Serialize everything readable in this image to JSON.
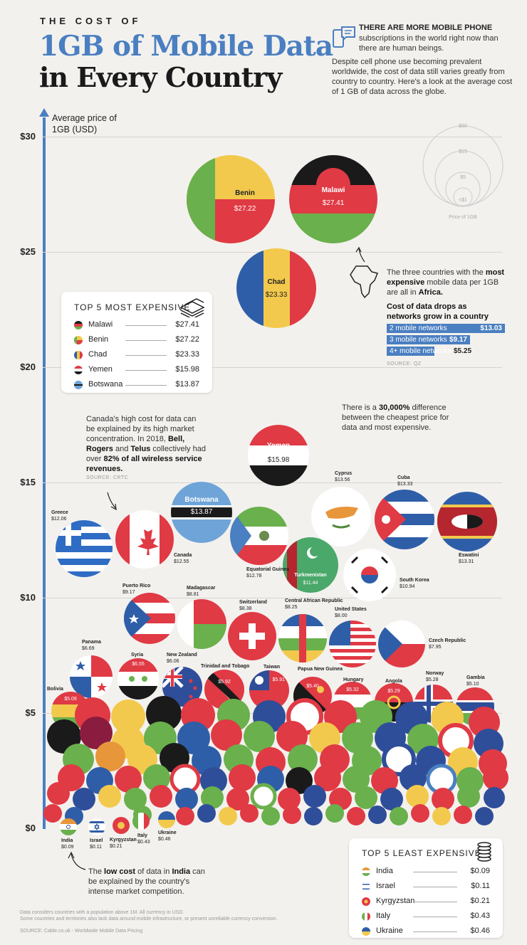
{
  "title": {
    "line1": "THE COST OF",
    "line2": "1GB of Mobile Data",
    "line3": "in Every Country"
  },
  "intro": {
    "headline": "THERE ARE MORE MOBILE PHONE",
    "sub": "subscriptions in the world right now than there are human beings.",
    "paragraph": "Despite cell phone use becoming prevalent worldwide, the cost of data still varies greatly from country to country. Here's a look at the average cost of 1 GB of data across the globe."
  },
  "legend_scale": {
    "labels": [
      "$30",
      "$15",
      "$5",
      "<$1"
    ],
    "caption": "Price of 1GB"
  },
  "chart_data": {
    "type": "scatter",
    "title": "The Cost of 1GB of Mobile Data in Every Country",
    "ylabel": "Average price of 1GB (USD)",
    "yticks": [
      "$0",
      "$5",
      "$10",
      "$15",
      "$20",
      "$25",
      "$30"
    ],
    "ylim": [
      0,
      30
    ],
    "points": [
      {
        "country": "Malawi",
        "value": 27.41,
        "label": "$27.41"
      },
      {
        "country": "Benin",
        "value": 27.22,
        "label": "$27.22"
      },
      {
        "country": "Chad",
        "value": 23.33,
        "label": "$23.33"
      },
      {
        "country": "Yemen",
        "value": 15.98,
        "label": "$15.98"
      },
      {
        "country": "Botswana",
        "value": 13.87,
        "label": "$13.87"
      },
      {
        "country": "Cyprus",
        "value": 13.56,
        "label": "$13.56"
      },
      {
        "country": "Cuba",
        "value": 13.33,
        "label": "$13.33"
      },
      {
        "country": "Eswatini",
        "value": 13.31,
        "label": "$13.31"
      },
      {
        "country": "Equatorial Guinea",
        "value": 12.78,
        "label": "$12.78"
      },
      {
        "country": "Canada",
        "value": 12.55,
        "label": "$12.55"
      },
      {
        "country": "Greece",
        "value": 12.06,
        "label": "$12.06"
      },
      {
        "country": "Turkmenistan",
        "value": 11.44,
        "label": "$11.44"
      },
      {
        "country": "South Korea",
        "value": 10.94,
        "label": "$10.94"
      },
      {
        "country": "Puerto Rico",
        "value": 9.17,
        "label": "$9.17"
      },
      {
        "country": "Madagascar",
        "value": 8.81,
        "label": "$8.81"
      },
      {
        "country": "Switzerland",
        "value": 8.38,
        "label": "$8.38"
      },
      {
        "country": "Central African Republic",
        "value": 8.25,
        "label": "$8.25"
      },
      {
        "country": "United States",
        "value": 8.0,
        "label": "$8.00"
      },
      {
        "country": "Czech Republic",
        "value": 7.95,
        "label": "$7.95"
      },
      {
        "country": "Panama",
        "value": 6.69,
        "label": "$6.69"
      },
      {
        "country": "Syria",
        "value": 6.55,
        "label": "$6.55"
      },
      {
        "country": "New Zealand",
        "value": 6.06,
        "label": "$6.06"
      },
      {
        "country": "Trinidad and Tobago",
        "value": 5.92,
        "label": "$5.92"
      },
      {
        "country": "Taiwan",
        "value": 5.91,
        "label": "$5.91"
      },
      {
        "country": "Papua New Guinea",
        "value": 5.4,
        "label": "$5.40"
      },
      {
        "country": "Hungary",
        "value": 5.32,
        "label": "$5.32"
      },
      {
        "country": "Angola",
        "value": 5.29,
        "label": "$5.29"
      },
      {
        "country": "Norway",
        "value": 5.28,
        "label": "$5.28"
      },
      {
        "country": "Gambia",
        "value": 5.1,
        "label": "$5.10"
      },
      {
        "country": "Bolivia",
        "value": 5.09,
        "label": "$5.09"
      },
      {
        "country": "Ukraine",
        "value": 0.46,
        "label": "$0.46"
      },
      {
        "country": "Italy",
        "value": 0.43,
        "label": "$0.43"
      },
      {
        "country": "Kyrgyzstan",
        "value": 0.21,
        "label": "$0.21"
      },
      {
        "country": "Israel",
        "value": 0.11,
        "label": "$0.11"
      },
      {
        "country": "India",
        "value": 0.09,
        "label": "$0.09"
      }
    ]
  },
  "top5_expensive": {
    "title": "TOP 5 MOST EXPENSIVE",
    "rows": [
      {
        "name": "Malawi",
        "price": "$27.41"
      },
      {
        "name": "Benin",
        "price": "$27.22"
      },
      {
        "name": "Chad",
        "price": "$23.33"
      },
      {
        "name": "Yemen",
        "price": "$15.98"
      },
      {
        "name": "Botswana",
        "price": "$13.87"
      }
    ]
  },
  "top5_cheap": {
    "title": "TOP 5 LEAST EXPENSIVE",
    "rows": [
      {
        "name": "India",
        "price": "$0.09"
      },
      {
        "name": "Israel",
        "price": "$0.11"
      },
      {
        "name": "Kyrgyzstan",
        "price": "$0.21"
      },
      {
        "name": "Italy",
        "price": "$0.43"
      },
      {
        "name": "Ukraine",
        "price": "$0.46"
      }
    ]
  },
  "africa_note": {
    "text1": "The three countries with the",
    "bold1": "most expensive",
    "text2": "mobile data per 1GB are all in",
    "bold2": "Africa.",
    "heading": "Cost of data drops as networks grow in a country",
    "networks": [
      {
        "label": "2 mobile networks",
        "price": "$13.03",
        "value": 13.03
      },
      {
        "label": "3 mobile networks",
        "price": "$9.17",
        "value": 9.17
      },
      {
        "label": "4+ mobile networks",
        "price": "$5.25",
        "value": 5.25
      }
    ],
    "source": "SOURCE: QZ"
  },
  "canada_note": {
    "p1": "Canada's high cost for data can be explained by its high market concentration. In 2018,",
    "b1": "Bell,",
    "b2": "Rogers",
    "and": "and",
    "b3": "Telus",
    "p2": "collectively had over",
    "b4": "82% of all wireless service revenues.",
    "source": "SOURCE: CRTC"
  },
  "diff_note": {
    "p1": "There is a",
    "b1": "30,000%",
    "p2": "difference between the cheapest price for data and most expensive."
  },
  "india_note": {
    "p1": "The",
    "b1": "low cost",
    "p2": "of data in",
    "b2": "India",
    "p3": "can be explained by the country's intense market competition."
  },
  "footer": {
    "line1": "Data considers countries with a population above 1M. All currency in USD.",
    "line2": "Some countries and territories also lack data around mobile infrastructure, or present unreliable currency conversion.",
    "source": "SOURCE: Cable.co.uk - Worldwide Mobile Data Pricing"
  },
  "colors": {
    "accent": "#4a7fc1",
    "red": "#e03a45",
    "green": "#6ab04c",
    "yellow": "#f2c94c"
  }
}
